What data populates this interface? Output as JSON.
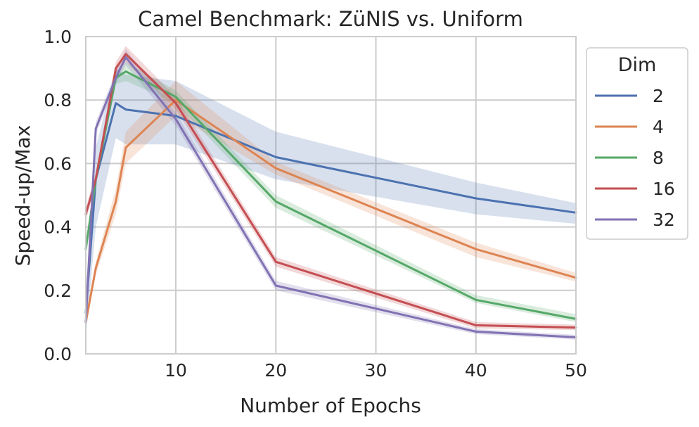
{
  "chart_data": {
    "type": "line",
    "title": "Camel Benchmark: ZüNIS vs. Uniform",
    "xlabel": "Number of Epochs",
    "ylabel": "Speed-up/Max",
    "xlim": [
      1,
      50
    ],
    "ylim": [
      0,
      1.0
    ],
    "x_ticks": [
      10,
      20,
      30,
      40,
      50
    ],
    "y_ticks": [
      "0.0",
      "0.2",
      "0.4",
      "0.6",
      "0.8",
      "1.0"
    ],
    "grid": true,
    "legend": {
      "title": "Dim",
      "placement": "outside-right"
    },
    "series": [
      {
        "name": "2",
        "color": "#4c72b0",
        "x": [
          1,
          2,
          4,
          5,
          10,
          20,
          40,
          50
        ],
        "values": [
          0.13,
          0.55,
          0.79,
          0.77,
          0.75,
          0.62,
          0.49,
          0.445
        ],
        "lower": [
          0.05,
          0.4,
          0.68,
          0.66,
          0.66,
          0.55,
          0.44,
          0.41
        ],
        "upper": [
          0.2,
          0.65,
          0.9,
          0.88,
          0.86,
          0.7,
          0.54,
          0.475
        ]
      },
      {
        "name": "4",
        "color": "#dd8452",
        "x": [
          1,
          2,
          4,
          5,
          10,
          20,
          40,
          50
        ],
        "values": [
          0.1,
          0.27,
          0.48,
          0.65,
          0.8,
          0.585,
          0.33,
          0.24
        ],
        "lower": [
          0.08,
          0.25,
          0.44,
          0.6,
          0.75,
          0.565,
          0.305,
          0.228
        ],
        "upper": [
          0.12,
          0.29,
          0.52,
          0.7,
          0.86,
          0.605,
          0.35,
          0.255
        ]
      },
      {
        "name": "8",
        "color": "#55a868",
        "x": [
          1,
          2,
          4,
          5,
          10,
          20,
          40,
          50
        ],
        "values": [
          0.33,
          0.55,
          0.87,
          0.89,
          0.81,
          0.48,
          0.17,
          0.11
        ],
        "lower": [
          0.31,
          0.53,
          0.85,
          0.86,
          0.79,
          0.46,
          0.16,
          0.1
        ],
        "upper": [
          0.35,
          0.57,
          0.89,
          0.92,
          0.83,
          0.5,
          0.185,
          0.125
        ]
      },
      {
        "name": "16",
        "color": "#c44e52",
        "x": [
          1,
          2,
          4,
          5,
          10,
          20,
          40,
          50
        ],
        "values": [
          0.44,
          0.55,
          0.9,
          0.945,
          0.79,
          0.29,
          0.09,
          0.083
        ],
        "lower": [
          0.42,
          0.53,
          0.88,
          0.92,
          0.77,
          0.275,
          0.08,
          0.075
        ],
        "upper": [
          0.46,
          0.57,
          0.92,
          0.97,
          0.81,
          0.305,
          0.1,
          0.092
        ]
      },
      {
        "name": "32",
        "color": "#8172b3",
        "x": [
          1,
          2,
          4,
          5,
          10,
          20,
          40,
          50
        ],
        "values": [
          0.1,
          0.71,
          0.87,
          0.935,
          0.74,
          0.215,
          0.07,
          0.052
        ],
        "lower": [
          0.08,
          0.69,
          0.85,
          0.91,
          0.72,
          0.2,
          0.062,
          0.045
        ],
        "upper": [
          0.12,
          0.73,
          0.89,
          0.96,
          0.76,
          0.23,
          0.078,
          0.06
        ]
      }
    ]
  }
}
